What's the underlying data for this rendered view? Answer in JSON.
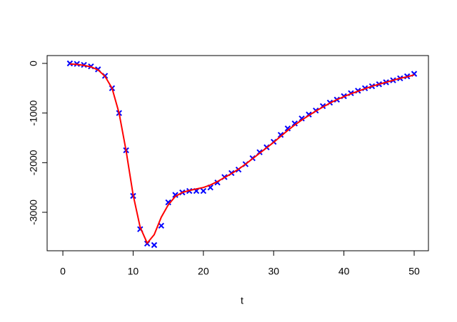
{
  "chart_data": {
    "type": "scatter",
    "xlabel": "t",
    "x": [
      1,
      2,
      3,
      4,
      5,
      6,
      7,
      8,
      9,
      10,
      11,
      12,
      13,
      14,
      15,
      16,
      17,
      18,
      19,
      20,
      21,
      22,
      23,
      24,
      25,
      26,
      27,
      28,
      29,
      30,
      31,
      32,
      33,
      34,
      35,
      36,
      37,
      38,
      39,
      40,
      41,
      42,
      43,
      44,
      45,
      46,
      47,
      48,
      49,
      50
    ],
    "series": [
      {
        "color": "#0000ff",
        "marker": "x",
        "values": [
          0,
          -10,
          -30,
          -60,
          -120,
          -250,
          -500,
          -1000,
          -1750,
          -2670,
          -3340,
          -3630,
          -3660,
          -3270,
          -2800,
          -2650,
          -2600,
          -2570,
          -2570,
          -2570,
          -2500,
          -2400,
          -2290,
          -2210,
          -2140,
          -2030,
          -1910,
          -1790,
          -1690,
          -1580,
          -1440,
          -1310,
          -1210,
          -1110,
          -1030,
          -950,
          -860,
          -790,
          -730,
          -660,
          -600,
          -550,
          -500,
          -460,
          -420,
          -380,
          -340,
          -300,
          -260,
          -210
        ]
      },
      {
        "color": "#ff0000",
        "marker": "line",
        "values": [
          -10,
          -20,
          -40,
          -70,
          -130,
          -260,
          -500,
          -1000,
          -1760,
          -2650,
          -3300,
          -3620,
          -3450,
          -3100,
          -2850,
          -2680,
          -2600,
          -2560,
          -2530,
          -2500,
          -2450,
          -2380,
          -2300,
          -2220,
          -2130,
          -2030,
          -1920,
          -1810,
          -1700,
          -1590,
          -1470,
          -1350,
          -1240,
          -1140,
          -1050,
          -960,
          -880,
          -800,
          -730,
          -670,
          -610,
          -560,
          -510,
          -460,
          -420,
          -380,
          -340,
          -300,
          -270,
          -230
        ]
      }
    ],
    "xlim": [
      -2.24,
      52.03
    ],
    "xticks": [
      0,
      10,
      20,
      30,
      40,
      50
    ],
    "ylim": [
      -3775,
      158
    ],
    "yticks": [
      0,
      -1000,
      -2000,
      -3000
    ]
  }
}
